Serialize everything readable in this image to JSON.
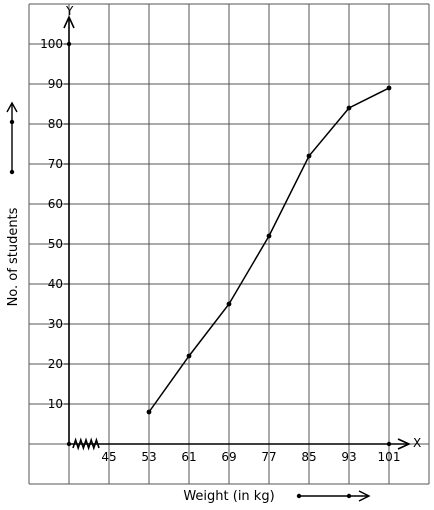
{
  "chart_data": {
    "type": "line",
    "title": "",
    "xlabel": "Weight (in kg)",
    "ylabel": "No. of students",
    "x_axis_letter": "X",
    "y_axis_letter": "Y",
    "x_ticks": [
      45,
      53,
      61,
      69,
      77,
      85,
      93,
      101
    ],
    "y_ticks": [
      10,
      20,
      30,
      40,
      50,
      60,
      70,
      80,
      90,
      100
    ],
    "axis_break": "x",
    "xlim": [
      37,
      109
    ],
    "ylim": [
      0,
      110
    ],
    "grid": true,
    "series": [
      {
        "x": [
          53,
          61,
          69,
          77,
          85,
          93,
          101
        ],
        "y": [
          8,
          22,
          35,
          52,
          72,
          84,
          89
        ]
      }
    ]
  }
}
